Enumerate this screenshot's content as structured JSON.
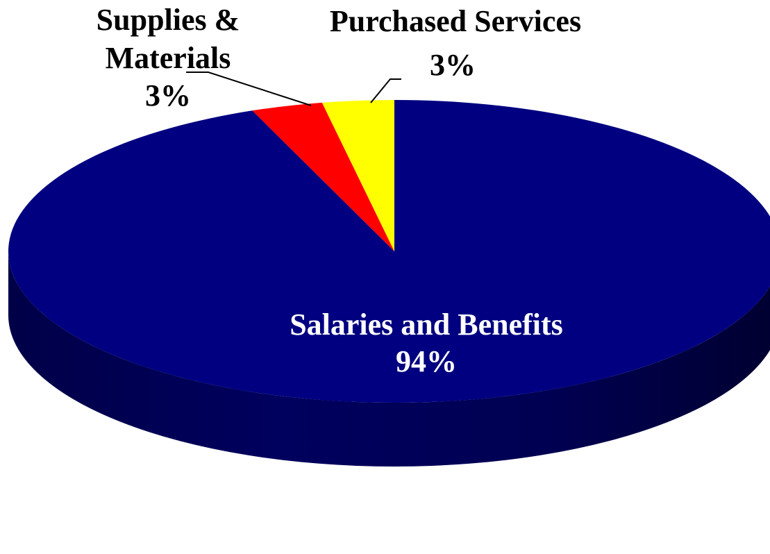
{
  "chart_data": {
    "type": "pie",
    "style": "3d",
    "title": "",
    "slices": [
      {
        "name": "Salaries and Benefits",
        "value": 94,
        "label": "94%",
        "color": "#000080",
        "side_color": "#000050",
        "label_color": "#ffffff"
      },
      {
        "name": "Supplies & Materials",
        "value": 3,
        "label": "3%",
        "color": "#ff0000",
        "side_color": "#a00000",
        "label_color": "#000000"
      },
      {
        "name": "Purchased Services",
        "value": 3,
        "label": "3%",
        "color": "#ffff00",
        "side_color": "#a0a000",
        "label_color": "#000000"
      }
    ]
  }
}
